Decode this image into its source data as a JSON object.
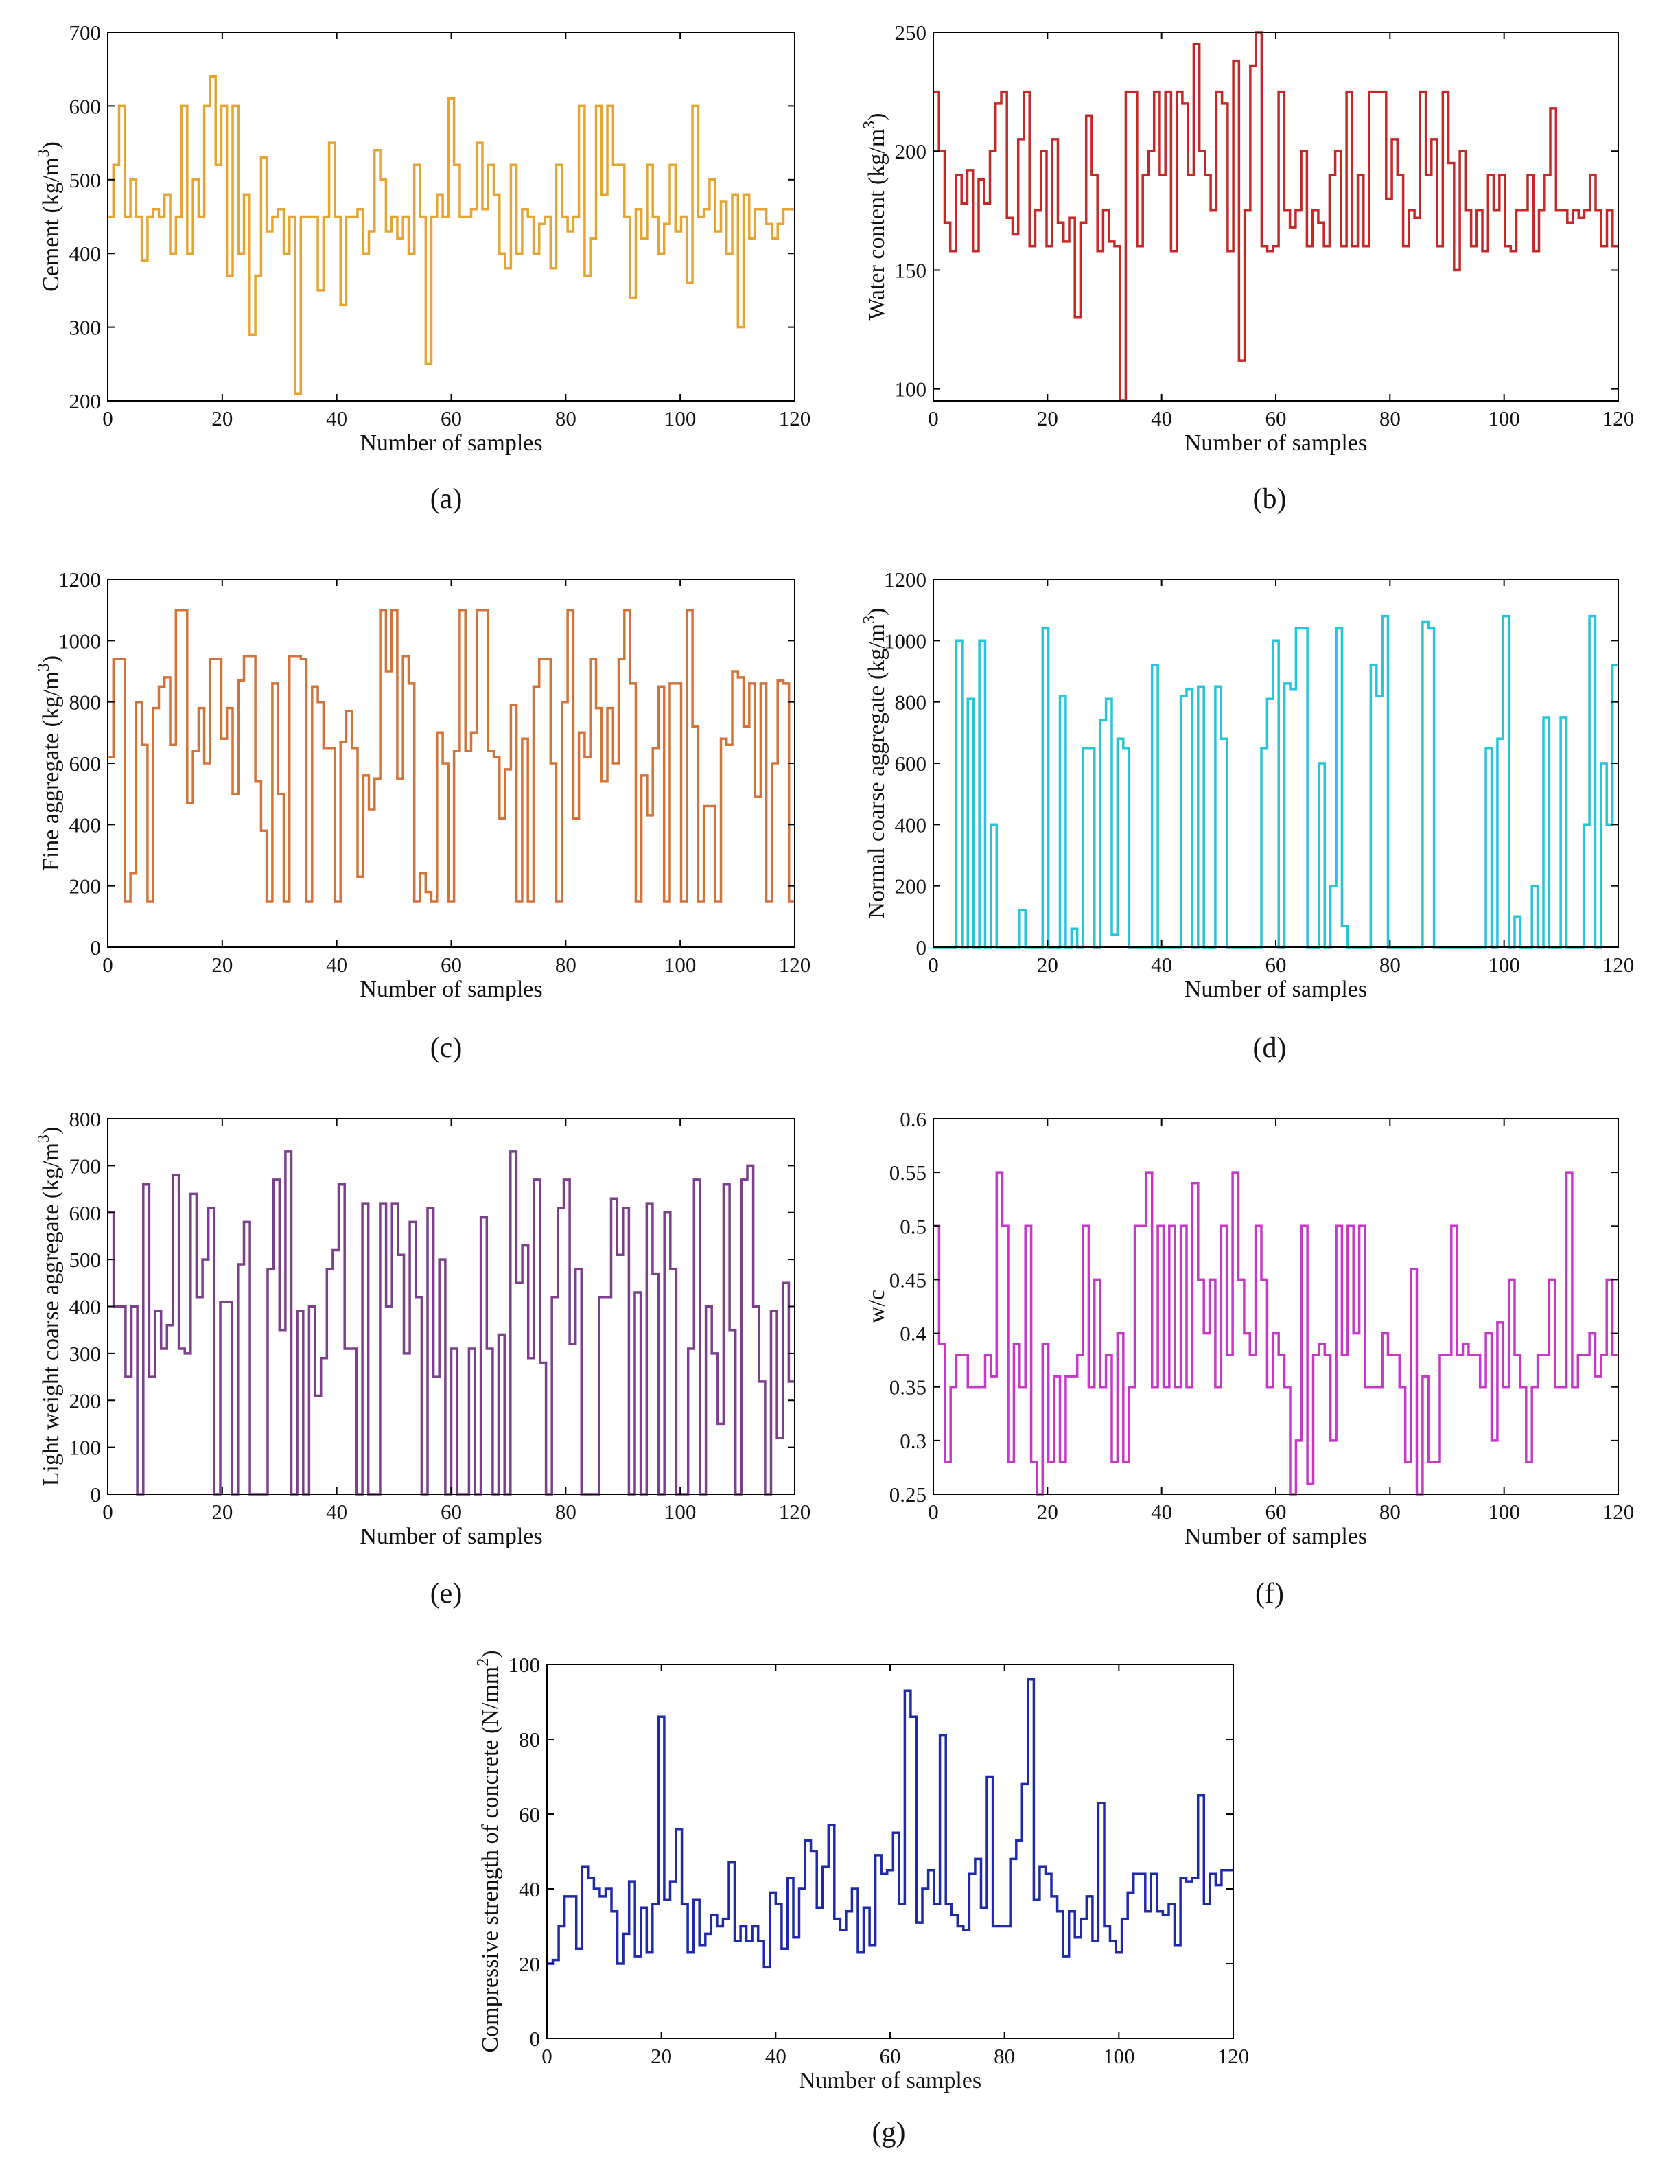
{
  "chart_data": [
    {
      "id": "a",
      "type": "line",
      "step": true,
      "caption": "(a)",
      "xlabel": "Number of samples",
      "ylabel": "Cement (kg/m",
      "ylabel_sup": "3",
      "ylabel_end": ")",
      "xlim": [
        0,
        120
      ],
      "ylim": [
        200,
        700
      ],
      "xticks": [
        0,
        20,
        40,
        60,
        80,
        100,
        120
      ],
      "yticks": [
        200,
        300,
        400,
        500,
        600,
        700
      ],
      "color": "#e6a532",
      "values": [
        450,
        520,
        600,
        450,
        500,
        450,
        390,
        450,
        460,
        450,
        480,
        400,
        450,
        600,
        400,
        500,
        450,
        600,
        640,
        520,
        600,
        370,
        600,
        400,
        480,
        290,
        370,
        530,
        430,
        450,
        460,
        400,
        450,
        210,
        450,
        450,
        450,
        350,
        450,
        550,
        450,
        330,
        450,
        450,
        460,
        400,
        430,
        540,
        500,
        430,
        450,
        420,
        450,
        400,
        520,
        450,
        250,
        450,
        480,
        450,
        610,
        520,
        450,
        450,
        460,
        550,
        460,
        520,
        480,
        400,
        380,
        520,
        400,
        460,
        450,
        400,
        440,
        450,
        380,
        520,
        450,
        430,
        450,
        600,
        370,
        420,
        600,
        480,
        600,
        520,
        520,
        450,
        340,
        460,
        420,
        520,
        450,
        400,
        440,
        520,
        430,
        450,
        360,
        600,
        450,
        460,
        500,
        430,
        470,
        400,
        480,
        300,
        480,
        420,
        460,
        460,
        440,
        420,
        440,
        460,
        460
      ]
    },
    {
      "id": "b",
      "type": "line",
      "step": true,
      "caption": "(b)",
      "xlabel": "Number of samples",
      "ylabel": "Water content (kg/m",
      "ylabel_sup": "3",
      "ylabel_end": ")",
      "xlim": [
        0,
        120
      ],
      "ylim": [
        95,
        250
      ],
      "xticks": [
        0,
        20,
        40,
        60,
        80,
        100,
        120
      ],
      "yticks": [
        100,
        150,
        200,
        250
      ],
      "color": "#c62828",
      "values": [
        225,
        200,
        170,
        158,
        190,
        178,
        192,
        158,
        188,
        178,
        200,
        220,
        225,
        172,
        165,
        205,
        225,
        160,
        175,
        200,
        160,
        205,
        170,
        162,
        172,
        130,
        170,
        215,
        190,
        158,
        175,
        162,
        160,
        95,
        225,
        225,
        160,
        190,
        200,
        225,
        190,
        225,
        158,
        225,
        220,
        190,
        245,
        200,
        190,
        175,
        225,
        220,
        158,
        238,
        112,
        175,
        236,
        250,
        160,
        158,
        160,
        225,
        175,
        168,
        175,
        200,
        160,
        175,
        170,
        160,
        190,
        200,
        160,
        225,
        160,
        190,
        160,
        225,
        225,
        225,
        180,
        205,
        190,
        160,
        175,
        172,
        225,
        190,
        205,
        160,
        225,
        195,
        150,
        200,
        175,
        160,
        175,
        158,
        190,
        175,
        190,
        160,
        158,
        175,
        175,
        190,
        158,
        175,
        190,
        218,
        175,
        175,
        170,
        175,
        172,
        175,
        190,
        175,
        160,
        175,
        160
      ]
    },
    {
      "id": "c",
      "type": "line",
      "step": true,
      "caption": "(c)",
      "xlabel": "Number of samples",
      "ylabel": "Fine aggregate (kg/m",
      "ylabel_sup": "3",
      "ylabel_end": ")",
      "xlim": [
        0,
        120
      ],
      "ylim": [
        0,
        1200
      ],
      "xticks": [
        0,
        20,
        40,
        60,
        80,
        100,
        120
      ],
      "yticks": [
        0,
        200,
        400,
        600,
        800,
        1000,
        1200
      ],
      "color": "#d2733a",
      "values": [
        620,
        940,
        940,
        150,
        240,
        800,
        660,
        150,
        780,
        850,
        880,
        660,
        1100,
        1100,
        470,
        640,
        780,
        600,
        940,
        940,
        680,
        780,
        500,
        870,
        950,
        950,
        540,
        380,
        150,
        860,
        500,
        150,
        950,
        950,
        940,
        150,
        850,
        800,
        650,
        650,
        150,
        670,
        770,
        650,
        230,
        560,
        450,
        550,
        1100,
        900,
        1100,
        550,
        950,
        860,
        150,
        240,
        180,
        150,
        700,
        600,
        150,
        640,
        1100,
        640,
        700,
        1100,
        1100,
        640,
        620,
        420,
        580,
        790,
        150,
        680,
        150,
        850,
        940,
        940,
        600,
        150,
        800,
        1100,
        420,
        700,
        620,
        940,
        780,
        540,
        780,
        600,
        940,
        1100,
        860,
        150,
        560,
        430,
        650,
        850,
        150,
        860,
        860,
        150,
        1100,
        720,
        150,
        460,
        460,
        150,
        680,
        660,
        900,
        880,
        720,
        860,
        490,
        860,
        150,
        600,
        870,
        860,
        150
      ]
    },
    {
      "id": "d",
      "type": "line",
      "step": true,
      "caption": "(d)",
      "xlabel": "Number of samples",
      "ylabel": "Normal coarse aggregate (kg/m",
      "ylabel_sup": "3",
      "ylabel_end": ")",
      "xlim": [
        0,
        120
      ],
      "ylim": [
        0,
        1200
      ],
      "xticks": [
        0,
        20,
        40,
        60,
        80,
        100,
        120
      ],
      "yticks": [
        0,
        200,
        400,
        600,
        800,
        1000,
        1200
      ],
      "color": "#26c6da",
      "values": [
        0,
        0,
        0,
        0,
        1000,
        0,
        810,
        0,
        1000,
        0,
        400,
        0,
        0,
        0,
        0,
        120,
        0,
        0,
        0,
        1040,
        0,
        0,
        820,
        0,
        60,
        0,
        650,
        650,
        0,
        740,
        810,
        40,
        680,
        650,
        0,
        0,
        0,
        0,
        920,
        0,
        0,
        0,
        0,
        820,
        840,
        0,
        850,
        0,
        0,
        850,
        680,
        0,
        0,
        0,
        0,
        0,
        0,
        650,
        810,
        1000,
        0,
        860,
        840,
        1040,
        1040,
        0,
        0,
        600,
        0,
        200,
        1040,
        70,
        0,
        0,
        0,
        0,
        920,
        820,
        1080,
        0,
        0,
        0,
        0,
        0,
        0,
        1060,
        1040,
        0,
        0,
        0,
        0,
        0,
        0,
        0,
        0,
        0,
        650,
        0,
        680,
        1080,
        0,
        100,
        0,
        0,
        200,
        0,
        750,
        0,
        0,
        750,
        0,
        0,
        0,
        400,
        1080,
        0,
        600,
        400,
        920
      ]
    },
    {
      "id": "e",
      "type": "line",
      "step": true,
      "caption": "(e)",
      "xlabel": "Number of samples",
      "ylabel": "Light weight coarse aggregate (kg/m",
      "ylabel_sup": "3",
      "ylabel_end": ")",
      "xlim": [
        0,
        120
      ],
      "ylim": [
        0,
        800
      ],
      "xticks": [
        0,
        20,
        40,
        60,
        80,
        100,
        120
      ],
      "yticks": [
        0,
        100,
        200,
        300,
        400,
        500,
        600,
        700,
        800
      ],
      "color": "#7b3f8c",
      "values": [
        600,
        400,
        400,
        250,
        400,
        0,
        660,
        250,
        390,
        310,
        360,
        680,
        310,
        300,
        640,
        420,
        500,
        610,
        0,
        410,
        410,
        0,
        490,
        580,
        0,
        0,
        0,
        480,
        670,
        350,
        730,
        0,
        390,
        0,
        400,
        210,
        290,
        480,
        520,
        660,
        310,
        310,
        0,
        620,
        0,
        0,
        620,
        400,
        620,
        510,
        300,
        580,
        420,
        0,
        610,
        250,
        500,
        0,
        310,
        0,
        0,
        310,
        0,
        590,
        310,
        0,
        340,
        0,
        730,
        450,
        530,
        290,
        670,
        280,
        0,
        420,
        610,
        670,
        320,
        480,
        0,
        0,
        0,
        420,
        420,
        630,
        510,
        610,
        0,
        430,
        0,
        620,
        470,
        0,
        600,
        480,
        0,
        0,
        310,
        670,
        0,
        400,
        300,
        150,
        660,
        350,
        0,
        670,
        700,
        400,
        240,
        0,
        390,
        120,
        450,
        240
      ]
    },
    {
      "id": "f",
      "type": "line",
      "step": true,
      "caption": "(f)",
      "xlabel": "Number of samples",
      "ylabel": "w/c",
      "ylabel_sup": "",
      "ylabel_end": "",
      "xlim": [
        0,
        120
      ],
      "ylim": [
        0.25,
        0.6
      ],
      "xticks": [
        0,
        20,
        40,
        60,
        80,
        100,
        120
      ],
      "yticks": [
        0.25,
        0.3,
        0.35,
        0.4,
        0.45,
        0.5,
        0.55,
        0.6
      ],
      "color": "#c838c8",
      "values": [
        0.5,
        0.39,
        0.28,
        0.35,
        0.38,
        0.38,
        0.35,
        0.35,
        0.35,
        0.38,
        0.36,
        0.55,
        0.5,
        0.28,
        0.39,
        0.35,
        0.5,
        0.28,
        0.25,
        0.39,
        0.28,
        0.36,
        0.28,
        0.36,
        0.36,
        0.38,
        0.5,
        0.35,
        0.45,
        0.35,
        0.38,
        0.28,
        0.4,
        0.28,
        0.35,
        0.5,
        0.5,
        0.55,
        0.35,
        0.5,
        0.35,
        0.5,
        0.35,
        0.5,
        0.35,
        0.54,
        0.45,
        0.4,
        0.45,
        0.35,
        0.5,
        0.38,
        0.55,
        0.45,
        0.4,
        0.38,
        0.5,
        0.45,
        0.35,
        0.4,
        0.38,
        0.35,
        0.25,
        0.3,
        0.5,
        0.26,
        0.38,
        0.39,
        0.38,
        0.3,
        0.5,
        0.38,
        0.5,
        0.4,
        0.5,
        0.35,
        0.35,
        0.35,
        0.4,
        0.38,
        0.38,
        0.35,
        0.28,
        0.46,
        0.25,
        0.36,
        0.28,
        0.28,
        0.38,
        0.38,
        0.5,
        0.38,
        0.39,
        0.38,
        0.38,
        0.35,
        0.4,
        0.3,
        0.41,
        0.35,
        0.45,
        0.38,
        0.35,
        0.28,
        0.35,
        0.38,
        0.38,
        0.45,
        0.35,
        0.35,
        0.55,
        0.35,
        0.38,
        0.38,
        0.4,
        0.36,
        0.38,
        0.45,
        0.38
      ]
    },
    {
      "id": "g",
      "type": "line",
      "step": true,
      "caption": "(g)",
      "xlabel": "Number of samples",
      "ylabel": "Compressive strength of concrete (N/mm",
      "ylabel_sup": "2",
      "ylabel_end": ")",
      "xlim": [
        0,
        120
      ],
      "ylim": [
        0,
        100
      ],
      "xticks": [
        0,
        20,
        40,
        60,
        80,
        100,
        120
      ],
      "yticks": [
        0,
        20,
        40,
        60,
        80,
        100
      ],
      "color": "#1f2aa8",
      "values": [
        20,
        21,
        30,
        38,
        38,
        24,
        46,
        43,
        40,
        38,
        40,
        34,
        20,
        28,
        42,
        22,
        35,
        23,
        36,
        86,
        37,
        42,
        56,
        36,
        23,
        37,
        25,
        28,
        33,
        30,
        32,
        47,
        26,
        30,
        26,
        30,
        26,
        19,
        39,
        36,
        24,
        43,
        27,
        40,
        53,
        50,
        35,
        46,
        57,
        32,
        29,
        34,
        40,
        23,
        35,
        25,
        49,
        44,
        45,
        55,
        36,
        93,
        86,
        31,
        40,
        45,
        36,
        81,
        36,
        33,
        30,
        29,
        44,
        48,
        35,
        70,
        30,
        30,
        30,
        48,
        53,
        68,
        96,
        37,
        46,
        44,
        38,
        34,
        22,
        34,
        27,
        32,
        38,
        26,
        63,
        30,
        26,
        23,
        32,
        39,
        44,
        44,
        34,
        44,
        34,
        33,
        36,
        25,
        43,
        42,
        43,
        65,
        36,
        44,
        41,
        45,
        45
      ]
    }
  ]
}
